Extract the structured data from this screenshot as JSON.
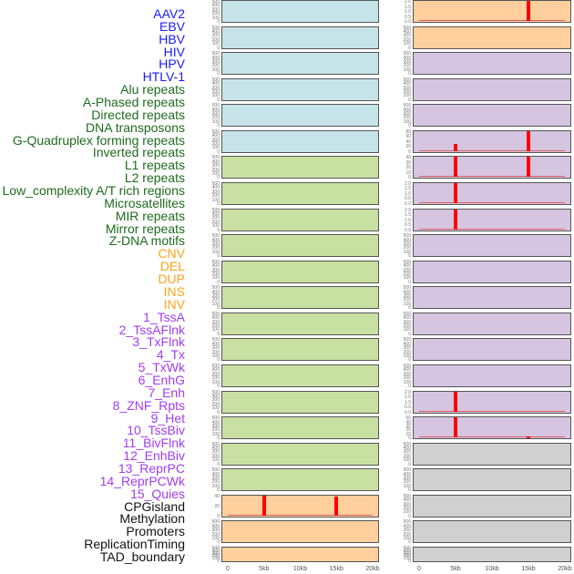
{
  "labels": [
    {
      "text": "AAV2",
      "group": "virus"
    },
    {
      "text": "EBV",
      "group": "virus"
    },
    {
      "text": "HBV",
      "group": "virus"
    },
    {
      "text": "HIV",
      "group": "virus"
    },
    {
      "text": "HPV",
      "group": "virus"
    },
    {
      "text": "HTLV-1",
      "group": "virus"
    },
    {
      "text": "Alu repeats",
      "group": "repeat"
    },
    {
      "text": "A-Phased repeats",
      "group": "repeat"
    },
    {
      "text": "Directed repeats",
      "group": "repeat"
    },
    {
      "text": "DNA transposons",
      "group": "repeat"
    },
    {
      "text": "G-Quadruplex forming repeats",
      "group": "repeat"
    },
    {
      "text": "Inverted repeats",
      "group": "repeat"
    },
    {
      "text": "L1 repeats",
      "group": "repeat"
    },
    {
      "text": "L2 repeats",
      "group": "repeat"
    },
    {
      "text": "Low_complexity A/T rich regions",
      "group": "repeat"
    },
    {
      "text": "Microsatellites",
      "group": "repeat"
    },
    {
      "text": "MIR repeats",
      "group": "repeat"
    },
    {
      "text": "Mirror repeats",
      "group": "repeat"
    },
    {
      "text": "Z-DNA motifs",
      "group": "repeat"
    },
    {
      "text": "CNV",
      "group": "sv"
    },
    {
      "text": "DEL",
      "group": "sv"
    },
    {
      "text": "DUP",
      "group": "sv"
    },
    {
      "text": "INS",
      "group": "sv"
    },
    {
      "text": "INV",
      "group": "sv"
    },
    {
      "text": "1_TssA",
      "group": "chromhmm"
    },
    {
      "text": "2_TssAFlnk",
      "group": "chromhmm"
    },
    {
      "text": "3_TxFlnk",
      "group": "chromhmm"
    },
    {
      "text": "4_Tx",
      "group": "chromhmm"
    },
    {
      "text": "5_TxWk",
      "group": "chromhmm"
    },
    {
      "text": "6_EnhG",
      "group": "chromhmm"
    },
    {
      "text": "7_Enh",
      "group": "chromhmm"
    },
    {
      "text": "8_ZNF_Rpts",
      "group": "chromhmm"
    },
    {
      "text": "9_Het",
      "group": "chromhmm"
    },
    {
      "text": "10_TssBiv",
      "group": "chromhmm"
    },
    {
      "text": "11_BivFlnk",
      "group": "chromhmm"
    },
    {
      "text": "12_EnhBiv",
      "group": "chromhmm"
    },
    {
      "text": "13_ReprPC",
      "group": "chromhmm"
    },
    {
      "text": "14_ReprPCWk",
      "group": "chromhmm"
    },
    {
      "text": "15_Quies",
      "group": "chromhmm"
    },
    {
      "text": "CPGisland",
      "group": "other"
    },
    {
      "text": "Methylation",
      "group": "other"
    },
    {
      "text": "Promoters",
      "group": "other"
    },
    {
      "text": "ReplicationTiming",
      "group": "other"
    },
    {
      "text": "TAD_boundary",
      "group": "other"
    }
  ],
  "colors": {
    "label_virus": "#1a1aff",
    "label_repeat": "#1e6b1e",
    "label_sv": "#ffa31a",
    "label_chromhmm": "#a23cf0",
    "label_other": "#111111",
    "blue": "#c6e3ea",
    "green": "#c8e0a2",
    "orange": "#ffcf9e",
    "purple": "#d5c5e1",
    "gray": "#d0d0d0",
    "bar": "#ff0000"
  },
  "chart_data": {
    "type": "bar",
    "xlabel": "",
    "ylabel": "",
    "xlim_kb": [
      0,
      20
    ],
    "x_tick_labels": [
      "0",
      "5kb",
      "10kb",
      "15kb",
      "20kb"
    ],
    "default_yticks": [
      "0",
      "100",
      "200",
      "300",
      "400",
      "500"
    ],
    "columns": [
      {
        "name": "left",
        "panels": [
          {
            "bg": "blue"
          },
          {
            "bg": "blue"
          },
          {
            "bg": "blue"
          },
          {
            "bg": "blue"
          },
          {
            "bg": "blue"
          },
          {
            "bg": "blue"
          },
          {
            "bg": "green"
          },
          {
            "bg": "green"
          },
          {
            "bg": "green"
          },
          {
            "bg": "green"
          },
          {
            "bg": "green"
          },
          {
            "bg": "green"
          },
          {
            "bg": "green"
          },
          {
            "bg": "green"
          },
          {
            "bg": "green"
          },
          {
            "bg": "green"
          },
          {
            "bg": "green"
          },
          {
            "bg": "green"
          },
          {
            "bg": "green"
          },
          {
            "bg": "orange",
            "yticks": [
              "0",
              "20",
              "40"
            ],
            "ymax": 55,
            "bars": [
              {
                "x_kb": 5,
                "value": 55
              },
              {
                "x_kb": 15,
                "value": 52
              }
            ]
          },
          {
            "bg": "orange"
          },
          {
            "bg": "orange"
          }
        ]
      },
      {
        "name": "right",
        "panels": [
          {
            "bg": "orange",
            "yticks": [
              "0.0",
              "0.5",
              "1.0",
              "1.5",
              "2.0"
            ],
            "ymax": 2,
            "bars": [
              {
                "x_kb": 15,
                "value": 2
              }
            ]
          },
          {
            "bg": "orange"
          },
          {
            "bg": "purple"
          },
          {
            "bg": "purple"
          },
          {
            "bg": "purple"
          },
          {
            "bg": "purple",
            "yticks": [
              "0",
              "20",
              "40",
              "60",
              "80"
            ],
            "ymax": 88,
            "bars": [
              {
                "x_kb": 5,
                "value": 30
              },
              {
                "x_kb": 15,
                "value": 88
              }
            ]
          },
          {
            "bg": "purple",
            "yticks": [
              "0",
              "10",
              "20",
              "30",
              "40"
            ],
            "ymax": 48,
            "bars": [
              {
                "x_kb": 5,
                "value": 48
              },
              {
                "x_kb": 15,
                "value": 48
              }
            ]
          },
          {
            "bg": "purple",
            "yticks": [
              "0.0",
              "0.5",
              "1.0",
              "1.5",
              "2.0"
            ],
            "ymax": 2,
            "bars": [
              {
                "x_kb": 5,
                "value": 2
              }
            ]
          },
          {
            "bg": "purple",
            "yticks": [
              "0.0",
              "0.5",
              "1.0",
              "1.5",
              "2.0"
            ],
            "ymax": 2,
            "bars": [
              {
                "x_kb": 5,
                "value": 2
              }
            ]
          },
          {
            "bg": "purple"
          },
          {
            "bg": "purple"
          },
          {
            "bg": "purple"
          },
          {
            "bg": "purple"
          },
          {
            "bg": "purple"
          },
          {
            "bg": "purple"
          },
          {
            "bg": "purple",
            "yticks": [
              "0.0",
              "0.5",
              "1.0",
              "1.5",
              "2.0"
            ],
            "ymax": 2,
            "bars": [
              {
                "x_kb": 5,
                "value": 2
              }
            ]
          },
          {
            "bg": "purple",
            "yticks": [
              "0",
              "10",
              "20",
              "30",
              "40",
              "50"
            ],
            "ymax": 52,
            "bars": [
              {
                "x_kb": 5,
                "value": 52
              },
              {
                "x_kb": 15,
                "value": 2
              }
            ]
          },
          {
            "bg": "gray"
          },
          {
            "bg": "gray"
          },
          {
            "bg": "gray"
          },
          {
            "bg": "gray"
          },
          {
            "bg": "gray"
          }
        ]
      }
    ]
  }
}
